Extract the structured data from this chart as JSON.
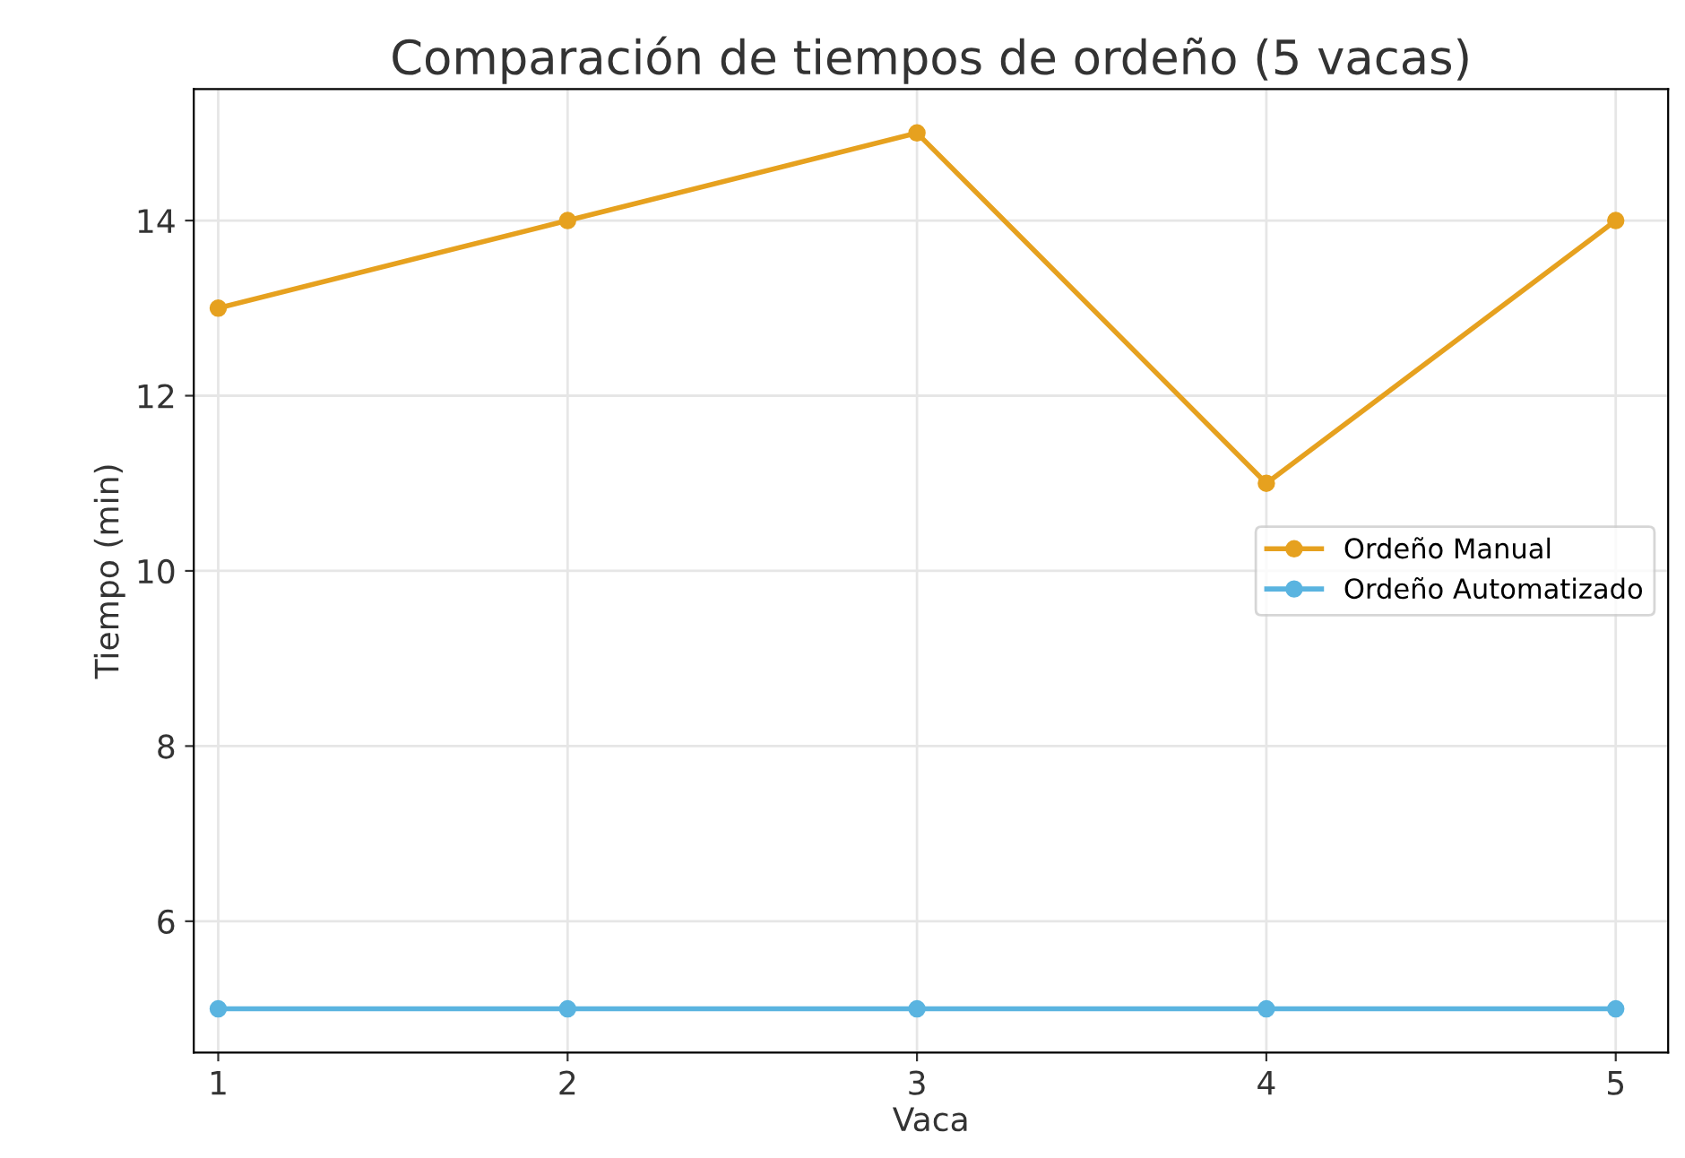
{
  "chart_data": {
    "type": "line",
    "title": "Comparación de tiempos de ordeño (5 vacas)",
    "xlabel": "Vaca",
    "ylabel": "Tiempo (min)",
    "x": [
      1,
      2,
      3,
      4,
      5
    ],
    "series": [
      {
        "name": "Ordeño Manual",
        "color": "#e6a11f",
        "values": [
          13,
          14,
          15,
          11,
          14
        ]
      },
      {
        "name": "Ordeño Automatizado",
        "color": "#5ab4e0",
        "values": [
          5,
          5,
          5,
          5,
          5
        ]
      }
    ],
    "xlim": [
      0.93,
      5.15
    ],
    "xticks": [
      1,
      2,
      3,
      4,
      5
    ],
    "ylim": [
      4.5,
      15.5
    ],
    "yticks": [
      6,
      8,
      10,
      12,
      14
    ],
    "grid": true,
    "legend": "right",
    "marker": "circle",
    "line_style": "solid"
  }
}
